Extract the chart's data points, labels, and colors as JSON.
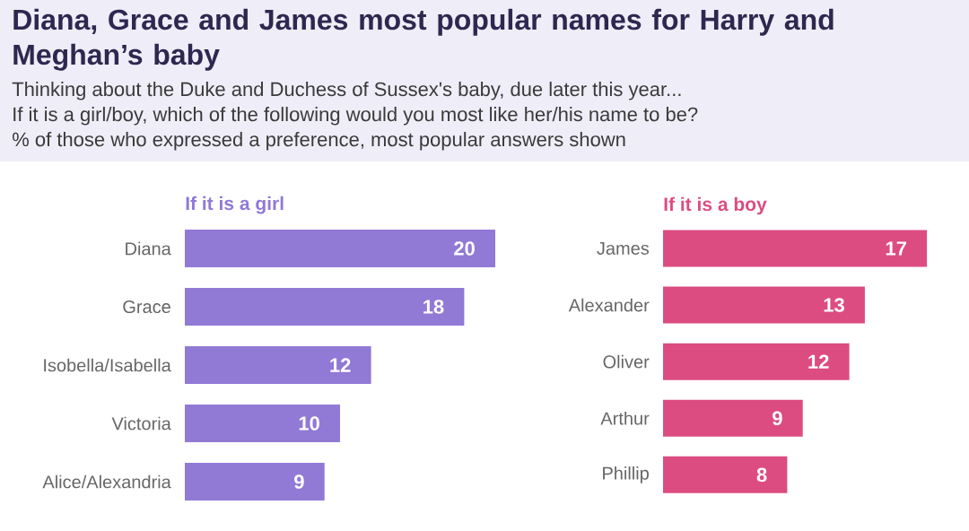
{
  "chart_data": [
    {
      "type": "other",
      "title": "Diana, Grace and James most popular names for Harry and Meghan’s baby",
      "subtitle": "Thinking about the Duke and Duchess of Sussex's baby, due later this year...",
      "annotations": [
        "If it is a girl/boy, which of the following would you most like her/his name to be?",
        "% of those who expressed a preference, most popular answers shown"
      ]
    },
    {
      "type": "bar",
      "orientation": "horizontal",
      "title": "If it is a girl",
      "categories": [
        "Diana",
        "Grace",
        "Isobella/Isabella",
        "Victoria",
        "Alice/Alexandria"
      ],
      "values": [
        20,
        18,
        12,
        10,
        9
      ],
      "color": "#9179d6",
      "data_labels": true
    },
    {
      "type": "bar",
      "orientation": "horizontal",
      "title": "If it is a boy",
      "categories": [
        "James",
        "Alexander",
        "Oliver",
        "Arthur",
        "Phillip"
      ],
      "values": [
        17,
        13,
        12,
        9,
        8
      ],
      "color": "#dc4c80",
      "data_labels": true
    }
  ]
}
